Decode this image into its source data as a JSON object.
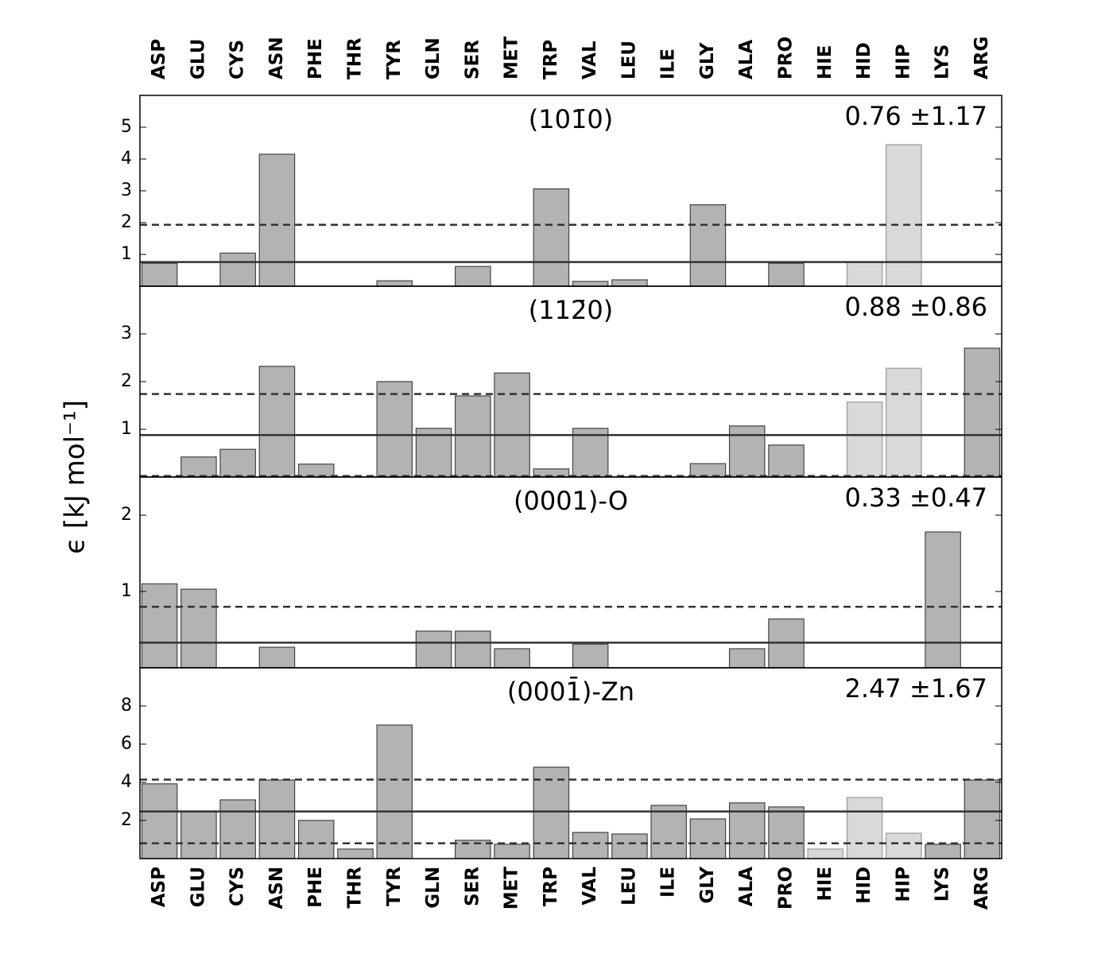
{
  "ylabel": "ϵ [kJ mol⁻¹]",
  "chart_data": [
    {
      "type": "bar",
      "title": "(101̄0)",
      "annotation": "0.76 ±1.17",
      "categories": [
        "ASP",
        "GLU",
        "CYS",
        "ASN",
        "PHE",
        "THR",
        "TYR",
        "GLN",
        "SER",
        "MET",
        "TRP",
        "VAL",
        "LEU",
        "ILE",
        "GLY",
        "ALA",
        "PRO",
        "HIE",
        "HID",
        "HIP",
        "LYS",
        "ARG"
      ],
      "category_colors": [
        "#000000",
        "#000000",
        "#000000",
        "#000000",
        "#000000",
        "#000000",
        "#000000",
        "#000000",
        "#000000",
        "#000000",
        "#000000",
        "#000000",
        "#000000",
        "#000000",
        "#000000",
        "#000000",
        "#000000",
        "#808080",
        "#808080",
        "#808080",
        "#000000",
        "#000000"
      ],
      "values": [
        0.72,
        0,
        1.04,
        4.15,
        0,
        0,
        0.17,
        0,
        0.62,
        0,
        3.06,
        0.15,
        0.2,
        0,
        2.56,
        0,
        0.72,
        0,
        0.75,
        4.45,
        0,
        0
      ],
      "bar_colors": [
        "#b3b3b3",
        "#b3b3b3",
        "#b3b3b3",
        "#b3b3b3",
        "#b3b3b3",
        "#b3b3b3",
        "#b3b3b3",
        "#b3b3b3",
        "#b3b3b3",
        "#b3b3b3",
        "#b3b3b3",
        "#b3b3b3",
        "#b3b3b3",
        "#b3b3b3",
        "#b3b3b3",
        "#b3b3b3",
        "#b3b3b3",
        "#d9d9d9",
        "#d9d9d9",
        "#d9d9d9",
        "#b3b3b3",
        "#b3b3b3"
      ],
      "ylim": [
        0,
        6
      ],
      "yticks": [
        1,
        2,
        3,
        4,
        5
      ],
      "hlines": [
        {
          "value": 0.76,
          "style": "solid"
        },
        {
          "value": 1.93,
          "style": "dashed"
        }
      ]
    },
    {
      "type": "bar",
      "title": "(112̄0)",
      "annotation": "0.88 ±0.86",
      "values": [
        0,
        0.42,
        0.58,
        2.32,
        0.27,
        0,
        2.0,
        1.02,
        1.7,
        2.18,
        0.17,
        1.02,
        0,
        0,
        0.28,
        1.07,
        0.67,
        0,
        1.57,
        2.28,
        0,
        2.7
      ],
      "bar_colors": [
        "#b3b3b3",
        "#b3b3b3",
        "#b3b3b3",
        "#b3b3b3",
        "#b3b3b3",
        "#b3b3b3",
        "#b3b3b3",
        "#b3b3b3",
        "#b3b3b3",
        "#b3b3b3",
        "#b3b3b3",
        "#b3b3b3",
        "#b3b3b3",
        "#b3b3b3",
        "#b3b3b3",
        "#b3b3b3",
        "#b3b3b3",
        "#d9d9d9",
        "#d9d9d9",
        "#d9d9d9",
        "#b3b3b3",
        "#b3b3b3"
      ],
      "ylim": [
        0,
        4
      ],
      "yticks": [
        1,
        2,
        3
      ],
      "hlines": [
        {
          "value": 0.88,
          "style": "solid"
        },
        {
          "value": 1.74,
          "style": "dashed"
        },
        {
          "value": 0.02,
          "style": "dashed"
        }
      ]
    },
    {
      "type": "bar",
      "title": "(0001)-O",
      "annotation": "0.33 ±0.47",
      "values": [
        1.1,
        1.03,
        0,
        0.27,
        0,
        0,
        0,
        0.48,
        0.48,
        0.25,
        0,
        0.31,
        0,
        0,
        0,
        0.25,
        0.64,
        0,
        0,
        0,
        1.78,
        0
      ],
      "bar_colors": [
        "#b3b3b3",
        "#b3b3b3",
        "#b3b3b3",
        "#b3b3b3",
        "#b3b3b3",
        "#b3b3b3",
        "#b3b3b3",
        "#b3b3b3",
        "#b3b3b3",
        "#b3b3b3",
        "#b3b3b3",
        "#b3b3b3",
        "#b3b3b3",
        "#b3b3b3",
        "#b3b3b3",
        "#b3b3b3",
        "#b3b3b3",
        "#d9d9d9",
        "#d9d9d9",
        "#d9d9d9",
        "#b3b3b3",
        "#b3b3b3"
      ],
      "ylim": [
        0,
        2.5
      ],
      "yticks": [
        1,
        2
      ],
      "hlines": [
        {
          "value": 0.33,
          "style": "solid"
        },
        {
          "value": 0.8,
          "style": "dashed"
        }
      ]
    },
    {
      "type": "bar",
      "title": "(0001̄)-Zn",
      "annotation": "2.47 ±1.67",
      "categories": [
        "ASP",
        "GLU",
        "CYS",
        "ASN",
        "PHE",
        "THR",
        "TYR",
        "GLN",
        "SER",
        "MET",
        "TRP",
        "VAL",
        "LEU",
        "ILE",
        "GLY",
        "ALA",
        "PRO",
        "HIE",
        "HID",
        "HIP",
        "LYS",
        "ARG"
      ],
      "category_colors": [
        "#000000",
        "#000000",
        "#000000",
        "#000000",
        "#000000",
        "#000000",
        "#000000",
        "#000000",
        "#000000",
        "#000000",
        "#000000",
        "#000000",
        "#000000",
        "#000000",
        "#000000",
        "#000000",
        "#000000",
        "#808080",
        "#808080",
        "#808080",
        "#000000",
        "#000000"
      ],
      "values": [
        3.92,
        2.5,
        3.08,
        4.12,
        2.0,
        0.5,
        7.0,
        0,
        0.96,
        0.75,
        4.79,
        1.37,
        1.29,
        2.79,
        2.08,
        2.92,
        2.71,
        0.5,
        3.2,
        1.33,
        0.75,
        4.12
      ],
      "bar_colors": [
        "#b3b3b3",
        "#b3b3b3",
        "#b3b3b3",
        "#b3b3b3",
        "#b3b3b3",
        "#b3b3b3",
        "#b3b3b3",
        "#b3b3b3",
        "#b3b3b3",
        "#b3b3b3",
        "#b3b3b3",
        "#b3b3b3",
        "#b3b3b3",
        "#b3b3b3",
        "#b3b3b3",
        "#b3b3b3",
        "#b3b3b3",
        "#d9d9d9",
        "#d9d9d9",
        "#d9d9d9",
        "#b3b3b3",
        "#b3b3b3"
      ],
      "ylim": [
        0,
        10
      ],
      "yticks": [
        2,
        4,
        6,
        8
      ],
      "hlines": [
        {
          "value": 2.47,
          "style": "solid"
        },
        {
          "value": 4.14,
          "style": "dashed"
        },
        {
          "value": 0.8,
          "style": "dashed"
        }
      ]
    }
  ]
}
